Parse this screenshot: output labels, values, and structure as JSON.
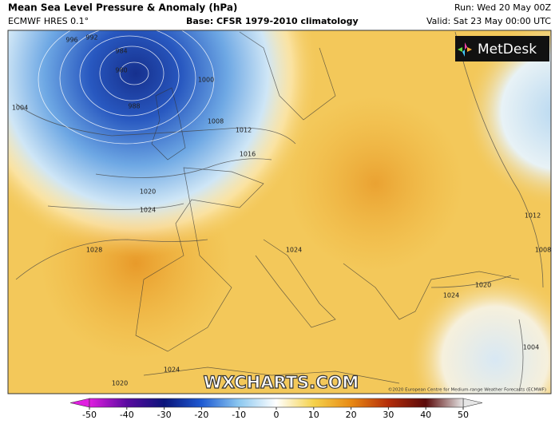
{
  "header": {
    "title": "Mean Sea Level Pressure & Anomaly (hPa)",
    "model": "ECMWF HRES 0.1°",
    "base": "Base: CFSR 1979-2010 climatology",
    "run": "Run: Wed 20 May 00Z",
    "valid": "Valid: Sat 23 May 00:00 UTC"
  },
  "logo": "MetDesk",
  "watermark": "WXCHARTS.COM",
  "copyright": "©2020 European Centre for Medium-range Weather Forecasts (ECMWF)",
  "contour_labels": [
    996,
    992,
    984,
    980,
    988,
    1000,
    1004,
    1008,
    1012,
    1016,
    1020,
    1024,
    1028,
    1024,
    1020,
    1024,
    1012,
    1008,
    1004,
    1024,
    1020
  ],
  "colorbar": {
    "lim": [
      -50,
      50
    ],
    "ticks": [
      -50,
      -40,
      -30,
      -20,
      -10,
      0,
      10,
      20,
      30,
      40,
      50
    ],
    "colors": [
      "#e01ee0",
      "#5a0aa0",
      "#0a147a",
      "#1e5ad2",
      "#8cc8f0",
      "#ffffff",
      "#f5d24b",
      "#e88a14",
      "#b42d0a",
      "#5a0a0a",
      "#e6e6e6"
    ]
  }
}
